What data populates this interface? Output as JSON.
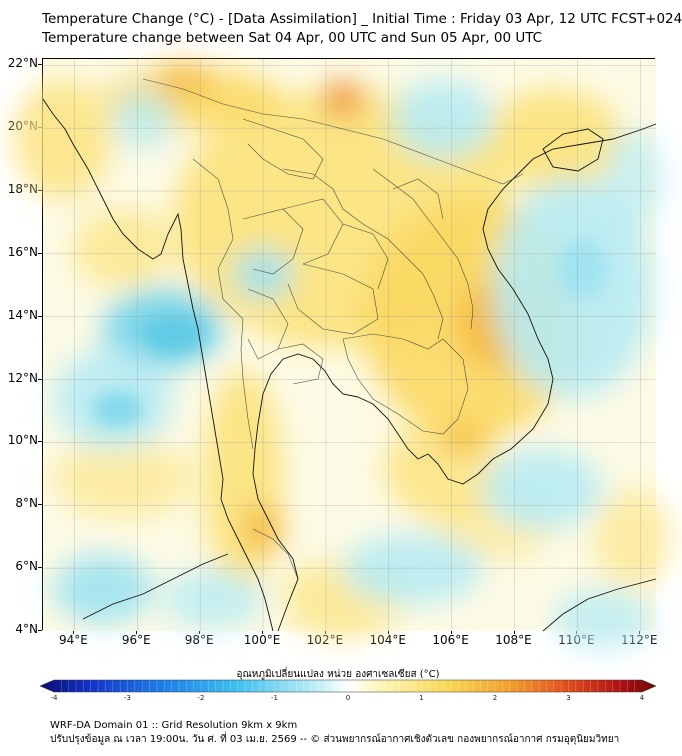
{
  "title": {
    "line1": "Temperature Change (°C) - [Data Assimilation] _ Initial Time : Friday 03 Apr, 12 UTC FCST+024",
    "line2": "Temperature change between Sat 04 Apr, 00 UTC and Sun 05 Apr, 00 UTC"
  },
  "map": {
    "lat_labels": [
      "22°N",
      "20°N",
      "18°N",
      "16°N",
      "14°N",
      "12°N",
      "10°N",
      "8°N",
      "6°N",
      "4°N"
    ],
    "lon_labels": [
      "94°E",
      "96°E",
      "98°E",
      "100°E",
      "102°E",
      "104°E",
      "106°E",
      "108°E",
      "110°E",
      "112°E"
    ],
    "lon_range": [
      93,
      112.5
    ],
    "lat_range": [
      4,
      22.2
    ],
    "gridlines": true,
    "colors": {
      "background": "#fdfbe6",
      "warm_light": "#fbe27a",
      "warm_mid": "#f5b83a",
      "warm_strong": "#ec8a2a",
      "cool_light": "#b7ebf3",
      "cool_mid": "#6fd3ea",
      "coast": "#111111",
      "border": "#333333"
    }
  },
  "colorbar": {
    "title": "อุณหภูมิเปลี่ยนแปลง หน่วย องศาเซลเซียส (°C)",
    "min": -4,
    "max": 4,
    "tick_labels": [
      "-4",
      "-3",
      "-2",
      "-1",
      "0",
      "1",
      "2",
      "3",
      "4"
    ]
  },
  "footer": {
    "line1": "WRF-DA Domain 01 :: Grid Resolution 9km x 9km",
    "line2": "ปรับปรุงข้อมูล ณ เวลา 19:00น. วัน ศ. ที่ 03 เม.ย. 2569 -- © ส่วนพยากรณ์อากาศเชิงตัวเลข กองพยากรณ์อากาศ กรมอุตุนิยมวิทยา"
  }
}
